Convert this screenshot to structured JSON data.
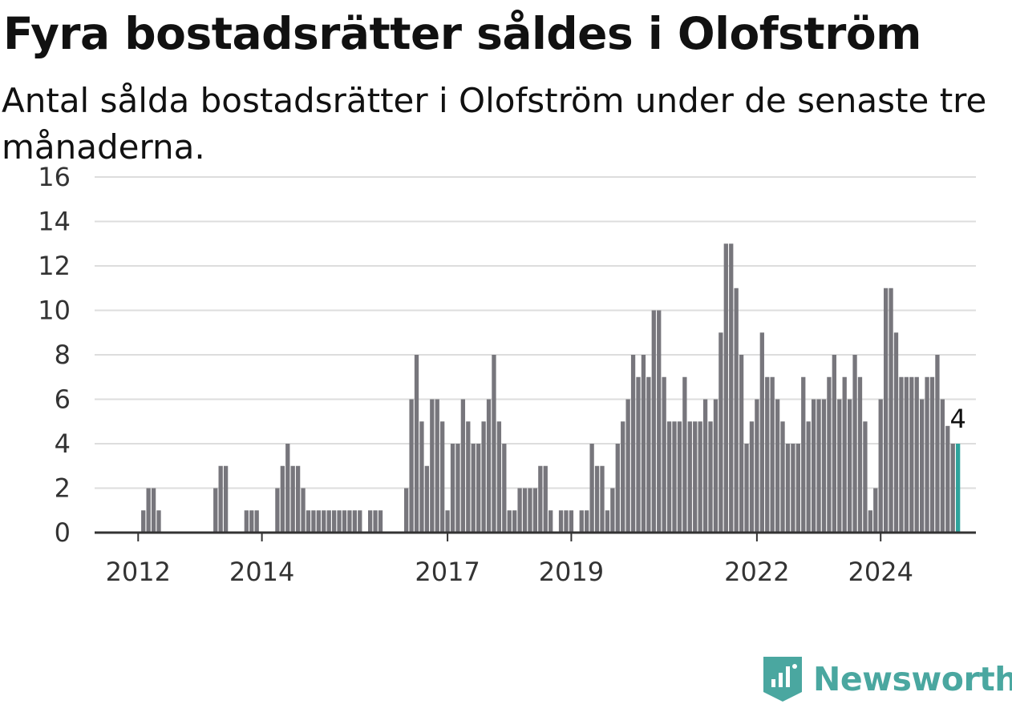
{
  "title": "Fyra bostadsrätter såldes i Olofström",
  "subtitle": "Antal sålda bostadsrätter i Olofström under de senaste tre månaderna.",
  "logo": {
    "name": "Newsworthy",
    "icon": "newsworthy-logo-icon",
    "color": "#4aa7a0"
  },
  "colors": {
    "bar": "#77767c",
    "highlight": "#2ea39c",
    "grid": "#dddddd",
    "axis": "#333333"
  },
  "chart_data": {
    "type": "bar",
    "y_ticks": [
      0,
      2,
      4,
      6,
      8,
      10,
      12,
      14,
      16
    ],
    "ylim": [
      0,
      16
    ],
    "x_tick_labels": [
      "2012",
      "2014",
      "2017",
      "2019",
      "2022",
      "2024"
    ],
    "x_tick_months": [
      8,
      32,
      68,
      92,
      128,
      152
    ],
    "grid": true,
    "values": [
      0,
      0,
      0,
      0,
      0,
      0,
      0,
      0,
      0,
      1,
      2,
      2,
      1,
      0,
      0,
      0,
      0,
      0,
      0,
      0,
      0,
      0,
      0,
      2,
      3,
      3,
      0,
      0,
      0,
      1,
      1,
      1,
      0,
      0,
      0,
      2,
      3,
      4,
      3,
      3,
      2,
      1,
      1,
      1,
      1,
      1,
      1,
      1,
      1,
      1,
      1,
      1,
      0,
      1,
      1,
      1,
      0,
      0,
      0,
      0,
      2,
      6,
      8,
      5,
      3,
      6,
      6,
      5,
      1,
      4,
      4,
      6,
      5,
      4,
      4,
      5,
      6,
      8,
      5,
      4,
      1,
      1,
      2,
      2,
      2,
      2,
      3,
      3,
      1,
      0,
      1,
      1,
      1,
      0,
      1,
      1,
      4,
      3,
      3,
      1,
      2,
      4,
      5,
      6,
      8,
      7,
      8,
      7,
      10,
      10,
      7,
      5,
      5,
      5,
      7,
      5,
      5,
      5,
      6,
      5,
      6,
      9,
      13,
      13,
      11,
      8,
      4,
      5,
      6,
      9,
      7,
      7,
      6,
      5,
      4,
      4,
      4,
      7,
      5,
      6,
      6,
      6,
      7,
      8,
      6,
      7,
      6,
      8,
      7,
      5,
      1,
      2,
      6,
      11,
      11,
      9,
      7,
      7,
      7,
      7,
      6,
      7,
      7,
      8,
      6,
      4.8,
      4,
      4
    ],
    "highlight_last": true,
    "last_value_label": "4"
  }
}
